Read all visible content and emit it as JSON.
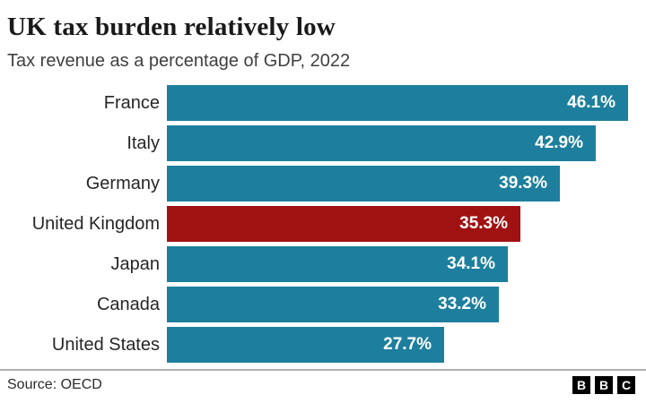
{
  "header": {
    "title": "UK tax burden relatively low",
    "subtitle": "Tax revenue as a percentage of GDP, 2022"
  },
  "chart_data": {
    "type": "bar",
    "orientation": "horizontal",
    "title": "UK tax burden relatively low",
    "subtitle": "Tax revenue as a percentage of GDP, 2022",
    "categories": [
      "France",
      "Italy",
      "Germany",
      "United Kingdom",
      "Japan",
      "Canada",
      "United States"
    ],
    "values": [
      46.1,
      42.9,
      39.3,
      35.3,
      34.1,
      33.2,
      27.7
    ],
    "value_labels": [
      "46.1%",
      "42.9%",
      "39.3%",
      "35.3%",
      "34.1%",
      "33.2%",
      "27.7%"
    ],
    "highlight_category": "United Kingdom",
    "bar_color": "#1d7f9d",
    "highlight_color": "#a01212",
    "value_label_color": "#ffffff",
    "xlim": [
      0,
      46.1
    ],
    "grid": false,
    "legend": false,
    "value_label_position": "inside-end"
  },
  "footer": {
    "source": "Source: OECD",
    "logo_letters": [
      "B",
      "B",
      "C"
    ]
  }
}
